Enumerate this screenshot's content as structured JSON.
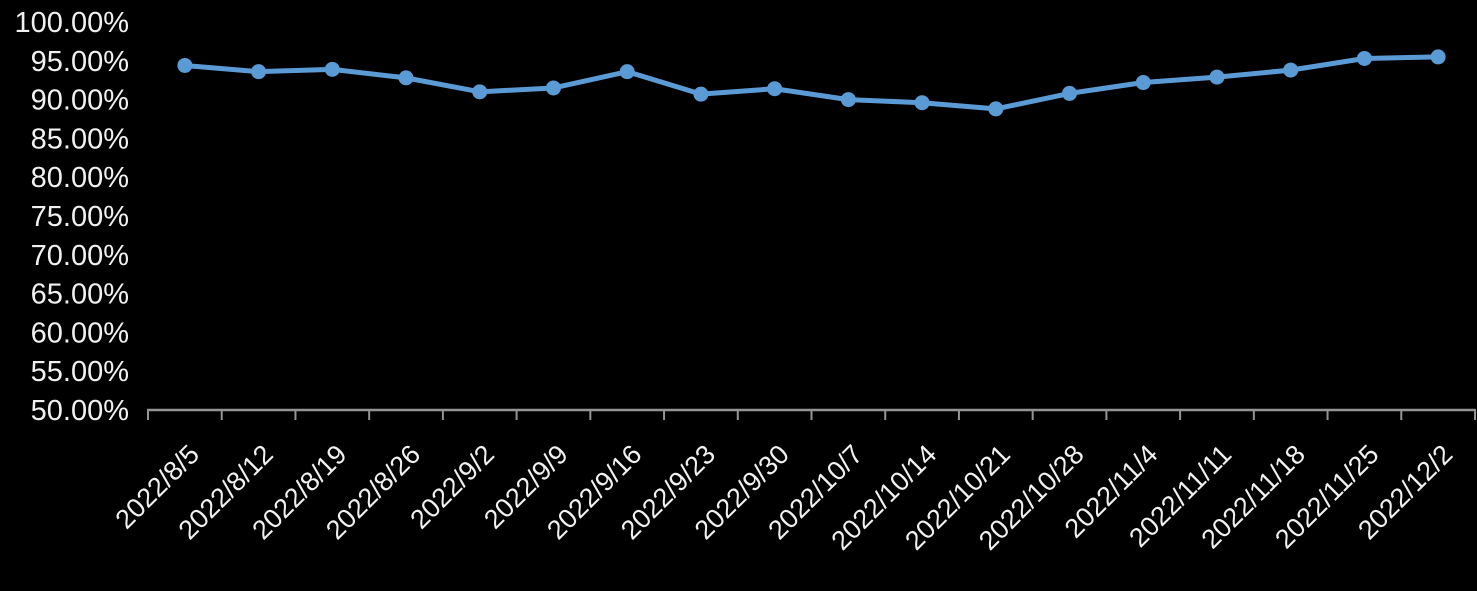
{
  "page": {
    "background_color": "#000000"
  },
  "chart_data": {
    "type": "line",
    "title": "",
    "xlabel": "",
    "ylabel": "",
    "unit": "%",
    "categories": [
      "2022/8/5",
      "2022/8/12",
      "2022/8/19",
      "2022/8/26",
      "2022/9/2",
      "2022/9/9",
      "2022/9/16",
      "2022/9/23",
      "2022/9/30",
      "2022/10/7",
      "2022/10/14",
      "2022/10/21",
      "2022/10/28",
      "2022/11/4",
      "2022/11/11",
      "2022/11/18",
      "2022/11/25",
      "2022/12/2"
    ],
    "series": [
      {
        "color": "#5B9BD5",
        "values": [
          94.4,
          93.6,
          93.9,
          92.8,
          91.0,
          91.5,
          93.6,
          90.7,
          91.4,
          90.0,
          89.6,
          88.8,
          90.8,
          92.2,
          92.9,
          93.8,
          95.3,
          95.5
        ]
      }
    ],
    "ylim": [
      50,
      100
    ],
    "ytick_step": 5,
    "ytick_labels": [
      "100.00%",
      "95.00%",
      "90.00%",
      "85.00%",
      "80.00%",
      "75.00%",
      "70.00%",
      "65.00%",
      "60.00%",
      "55.00%",
      "50.00%"
    ],
    "grid": false,
    "legend": "none",
    "marker": "circle",
    "x_labels_rotation_deg": -45,
    "colors": {
      "line": "#5B9BD5",
      "axis_line": "#949494",
      "text": "#F1F1F1",
      "background": "#000000"
    }
  }
}
